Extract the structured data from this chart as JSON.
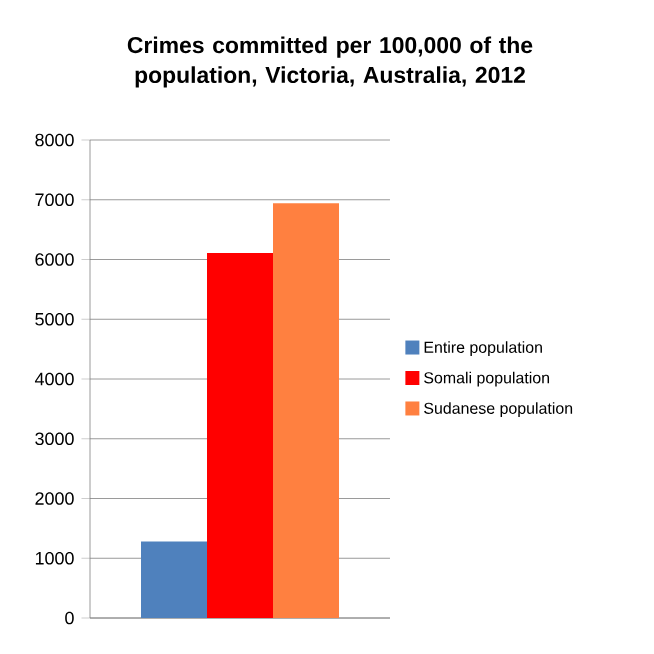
{
  "chart_data": {
    "type": "bar",
    "title": "Crimes committed per 100,000 of the population, Victoria, Australia, 2012",
    "categories": [
      null
    ],
    "series": [
      {
        "name": "Entire population",
        "color": "#4f81bd",
        "values": [
          1280
        ]
      },
      {
        "name": "Somali population",
        "color": "#ff0000",
        "values": [
          6110
        ]
      },
      {
        "name": "Sudanese population",
        "color": "#ff8040",
        "values": [
          6940
        ]
      }
    ],
    "ylim": [
      0,
      8000
    ],
    "yticks": [
      0,
      1000,
      2000,
      3000,
      4000,
      5000,
      6000,
      7000,
      8000
    ],
    "grid": "y",
    "legend": "right"
  }
}
